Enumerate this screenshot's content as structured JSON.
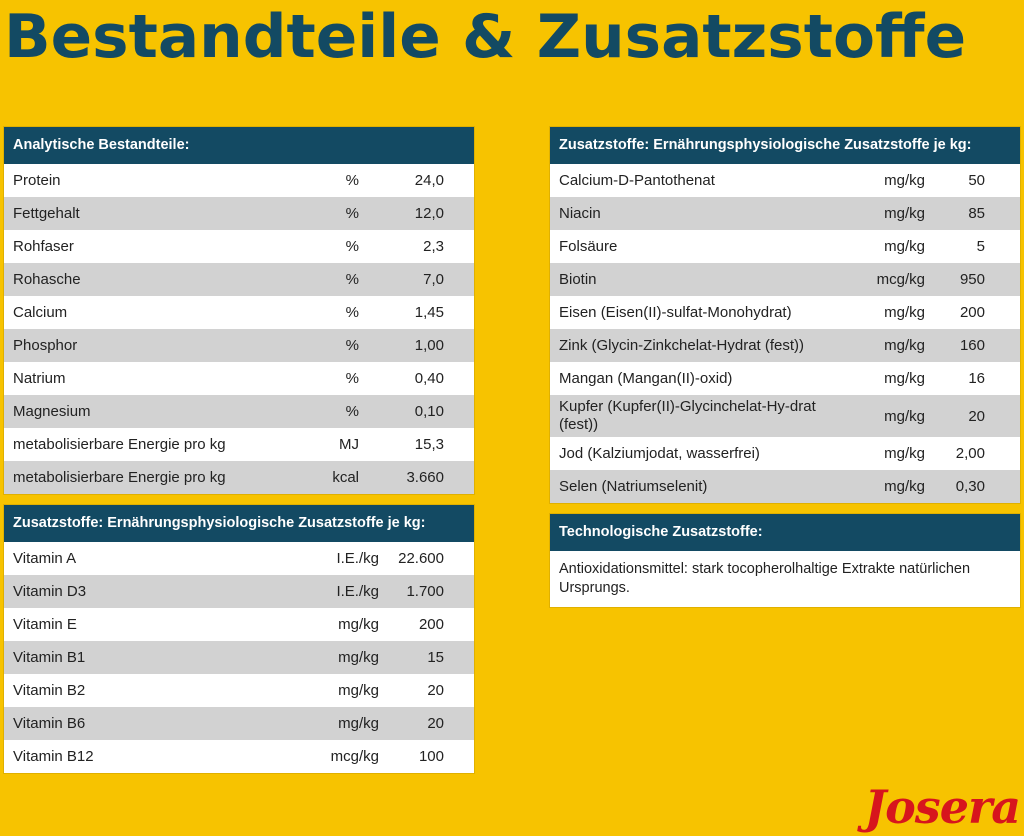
{
  "page": {
    "title": "Bestandteile & Zusatzstoffe",
    "logo": "Josera"
  },
  "analytic": {
    "header": "Analytische Bestandteile:",
    "rows": [
      {
        "label": "Protein",
        "unit": "%",
        "value": "24,0"
      },
      {
        "label": "Fettgehalt",
        "unit": "%",
        "value": "12,0"
      },
      {
        "label": "Rohfaser",
        "unit": "%",
        "value": "2,3"
      },
      {
        "label": "Rohasche",
        "unit": "%",
        "value": "7,0"
      },
      {
        "label": "Calcium",
        "unit": "%",
        "value": "1,45"
      },
      {
        "label": "Phosphor",
        "unit": "%",
        "value": "1,00"
      },
      {
        "label": "Natrium",
        "unit": "%",
        "value": "0,40"
      },
      {
        "label": "Magnesium",
        "unit": "%",
        "value": "0,10"
      },
      {
        "label": "metabolisierbare Energie pro kg",
        "unit": "MJ",
        "value": "15,3"
      },
      {
        "label": "metabolisierbare Energie pro kg",
        "unit": "kcal",
        "value": "3.660"
      }
    ]
  },
  "vitamins": {
    "header": "Zusatzstoffe: Ernährungsphysiologische Zusatzstoffe je kg:",
    "rows": [
      {
        "label": "Vitamin A",
        "unit": "I.E./kg",
        "value": "22.600"
      },
      {
        "label": "Vitamin D3",
        "unit": "I.E./kg",
        "value": "1.700"
      },
      {
        "label": "Vitamin E",
        "unit": "mg/kg",
        "value": "200"
      },
      {
        "label": "Vitamin B1",
        "unit": "mg/kg",
        "value": "15"
      },
      {
        "label": "Vitamin B2",
        "unit": "mg/kg",
        "value": "20"
      },
      {
        "label": "Vitamin B6",
        "unit": "mg/kg",
        "value": "20"
      },
      {
        "label": "Vitamin B12",
        "unit": "mcg/kg",
        "value": "100"
      }
    ]
  },
  "minerals": {
    "header": "Zusatzstoffe: Ernährungsphysiologische Zusatzstoffe je kg:",
    "rows": [
      {
        "label": "Calcium-D-Pantothenat",
        "unit": "mg/kg",
        "value": "50"
      },
      {
        "label": "Niacin",
        "unit": "mg/kg",
        "value": "85"
      },
      {
        "label": "Folsäure",
        "unit": "mg/kg",
        "value": "5"
      },
      {
        "label": "Biotin",
        "unit": "mcg/kg",
        "value": "950"
      },
      {
        "label": "Eisen (Eisen(II)-sulfat-Monohydrat)",
        "unit": "mg/kg",
        "value": "200"
      },
      {
        "label": "Zink (Glycin-Zinkchelat-Hydrat (fest))",
        "unit": "mg/kg",
        "value": "160"
      },
      {
        "label": "Mangan (Mangan(II)-oxid)",
        "unit": "mg/kg",
        "value": "16"
      },
      {
        "label": "Kupfer (Kupfer(II)-Glycinchelat-Hy-drat (fest))",
        "unit": "mg/kg",
        "value": "20"
      },
      {
        "label": "Jod (Kalziumjodat, wasserfrei)",
        "unit": "mg/kg",
        "value": "2,00"
      },
      {
        "label": "Selen (Natriumselenit)",
        "unit": "mg/kg",
        "value": "0,30"
      }
    ]
  },
  "technological": {
    "header": "Technologische Zusatzstoffe:",
    "text": "Antioxidationsmittel: stark tocopherolhaltige Extrakte natürlichen Ursprungs."
  }
}
